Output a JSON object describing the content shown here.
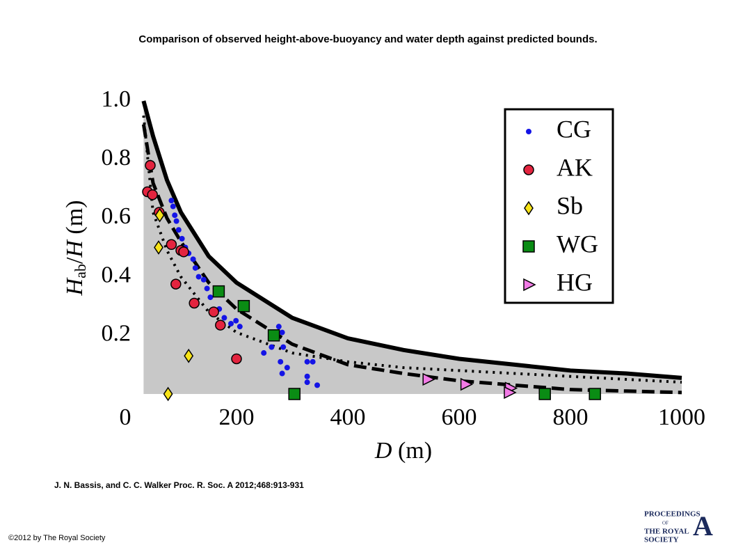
{
  "chart_data": {
    "type": "scatter",
    "title": "Comparison of observed height-above-buoyancy and water depth against predicted bounds.",
    "xlabel": {
      "var": "D",
      "unit": "(m)"
    },
    "ylabel": {
      "var": "H",
      "sub": "ab",
      "slash": "/",
      "var2": "H",
      "unit": "(m)"
    },
    "xlim": [
      0,
      1000
    ],
    "ylim": [
      0,
      1
    ],
    "xticks": [
      0,
      200,
      400,
      600,
      800,
      1000
    ],
    "yticks": [
      0.2,
      0.4,
      0.6,
      0.8,
      {
        "value": 1,
        "label": "1.0"
      }
    ],
    "shade_color": "#c8c8c8",
    "legend": "upper right",
    "curves": [
      {
        "style": "solid",
        "color": "#000000",
        "x": [
          33,
          50,
          75,
          100,
          150,
          200,
          300,
          400,
          500,
          600,
          700,
          800,
          900,
          1000
        ],
        "y": [
          1.0,
          0.88,
          0.73,
          0.62,
          0.47,
          0.38,
          0.26,
          0.19,
          0.15,
          0.12,
          0.1,
          0.08,
          0.07,
          0.055
        ]
      },
      {
        "style": "dashed",
        "color": "#000000",
        "x": [
          33,
          50,
          75,
          100,
          150,
          200,
          250,
          300,
          400,
          500,
          600,
          700,
          800,
          900,
          1000
        ],
        "y": [
          0.92,
          0.72,
          0.6,
          0.52,
          0.38,
          0.29,
          0.23,
          0.17,
          0.1,
          0.07,
          0.045,
          0.03,
          0.015,
          0.01,
          0.005
        ]
      },
      {
        "style": "dotted",
        "color": "#000000",
        "x": [
          33,
          50,
          75,
          100,
          150,
          200,
          300,
          400,
          500,
          600,
          700,
          800,
          900,
          1000
        ],
        "y": [
          0.95,
          0.62,
          0.49,
          0.4,
          0.28,
          0.21,
          0.14,
          0.11,
          0.09,
          0.08,
          0.07,
          0.06,
          0.05,
          0.04
        ]
      }
    ],
    "series": [
      {
        "name": "CG",
        "marker": "dot",
        "color": "#1414e6",
        "x": [
          83,
          86,
          89,
          92,
          96,
          102,
          108,
          114,
          122,
          126,
          132,
          141,
          147,
          153,
          169,
          178,
          190,
          199,
          206,
          249,
          263,
          276,
          282,
          284,
          279,
          282,
          291,
          327,
          327,
          337,
          345,
          327
        ],
        "values": [
          0.66,
          0.64,
          0.61,
          0.59,
          0.56,
          0.53,
          0.5,
          0.48,
          0.46,
          0.43,
          0.4,
          0.39,
          0.36,
          0.33,
          0.29,
          0.26,
          0.24,
          0.25,
          0.23,
          0.14,
          0.16,
          0.23,
          0.21,
          0.16,
          0.11,
          0.07,
          0.09,
          0.11,
          0.06,
          0.11,
          0.03,
          0.04
        ]
      },
      {
        "name": "AK",
        "marker": "circle",
        "color": "#e3243f",
        "x": [
          45,
          40,
          49,
          61,
          83,
          91,
          100,
          105,
          124,
          159,
          171,
          200
        ],
        "values": [
          0.78,
          0.69,
          0.68,
          0.62,
          0.51,
          0.375,
          0.49,
          0.485,
          0.31,
          0.28,
          0.235,
          0.12
        ]
      },
      {
        "name": "Sb",
        "marker": "diamond",
        "color": "#f7e318",
        "x": [
          62,
          60,
          114,
          77
        ],
        "values": [
          0.61,
          0.5,
          0.13,
          0.0
        ]
      },
      {
        "name": "WG",
        "marker": "square",
        "color": "#0a8c14",
        "x": [
          168,
          213,
          267,
          304,
          754,
          844
        ],
        "values": [
          0.35,
          0.3,
          0.2,
          0.0,
          0.0,
          0.0
        ]
      },
      {
        "name": "HG",
        "marker": "triangle",
        "color": "#f27ae6",
        "x": [
          544,
          612,
          692,
          690
        ],
        "values": [
          0.05,
          0.033,
          0.02,
          0.005
        ]
      }
    ]
  },
  "citation": "J. N. Bassis, and C. C. Walker Proc. R. Soc. A 2012;468:913-931",
  "copyright": "©2012 by The Royal Society",
  "logo": {
    "line1": "PROCEEDINGS",
    "line2": "OF",
    "line3": "THE ROYAL",
    "line4": "SOCIETY",
    "letter": "A"
  }
}
